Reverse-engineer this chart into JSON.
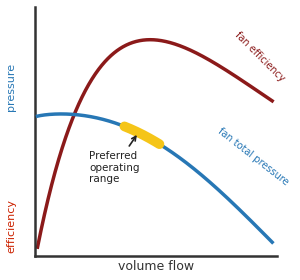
{
  "bg_color": "#ffffff",
  "fan_efficiency_color": "#8B1A1A",
  "fan_pressure_color": "#2777B5",
  "preferred_range_color": "#F5C518",
  "pressure_label_color": "#2777B5",
  "efficiency_label_color": "#CC2200",
  "axis_color": "#333333",
  "annotation_color": "#222222",
  "xlabel": "volume flow",
  "ylabel_pressure": "pressure",
  "ylabel_efficiency": "efficiency",
  "label_fan_efficiency": "fan efficiency",
  "label_fan_pressure": "fan total pressure",
  "label_preferred": "Preferred\noperating\nrange",
  "preferred_range_lw": 7,
  "curve_lw": 2.5
}
